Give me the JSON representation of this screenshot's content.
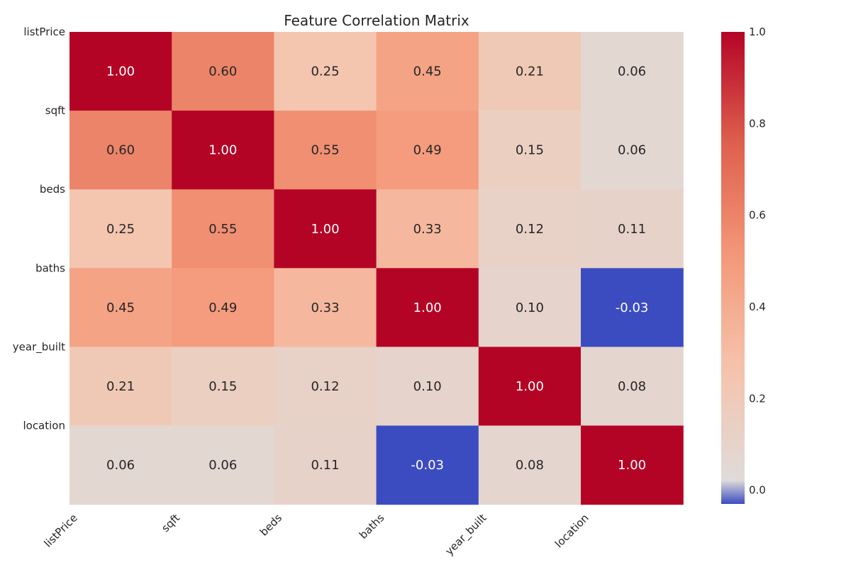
{
  "chart_data": {
    "type": "heatmap",
    "title": "Feature Correlation Matrix",
    "row_labels": [
      "listPrice",
      "sqft",
      "beds",
      "baths",
      "year_built",
      "location"
    ],
    "col_labels": [
      "listPrice",
      "sqft",
      "beds",
      "baths",
      "year_built",
      "location"
    ],
    "values": [
      [
        1.0,
        0.6,
        0.25,
        0.45,
        0.21,
        0.06
      ],
      [
        0.6,
        1.0,
        0.55,
        0.49,
        0.15,
        0.06
      ],
      [
        0.25,
        0.55,
        1.0,
        0.33,
        0.12,
        0.11
      ],
      [
        0.45,
        0.49,
        0.33,
        1.0,
        0.1,
        -0.03
      ],
      [
        0.21,
        0.15,
        0.12,
        0.1,
        1.0,
        0.08
      ],
      [
        0.06,
        0.06,
        0.11,
        -0.03,
        0.08,
        1.0
      ]
    ],
    "number_format": "0.00",
    "colormap": "coolwarm",
    "vmin": -0.03,
    "vmax": 1.0,
    "colorbar": {
      "ticks": [
        0.0,
        0.2,
        0.4,
        0.6,
        0.8,
        1.0
      ],
      "tick_labels": [
        "0.0",
        "0.2",
        "0.4",
        "0.6",
        "0.8",
        "1.0"
      ]
    },
    "xlabel": "",
    "ylabel": ""
  }
}
